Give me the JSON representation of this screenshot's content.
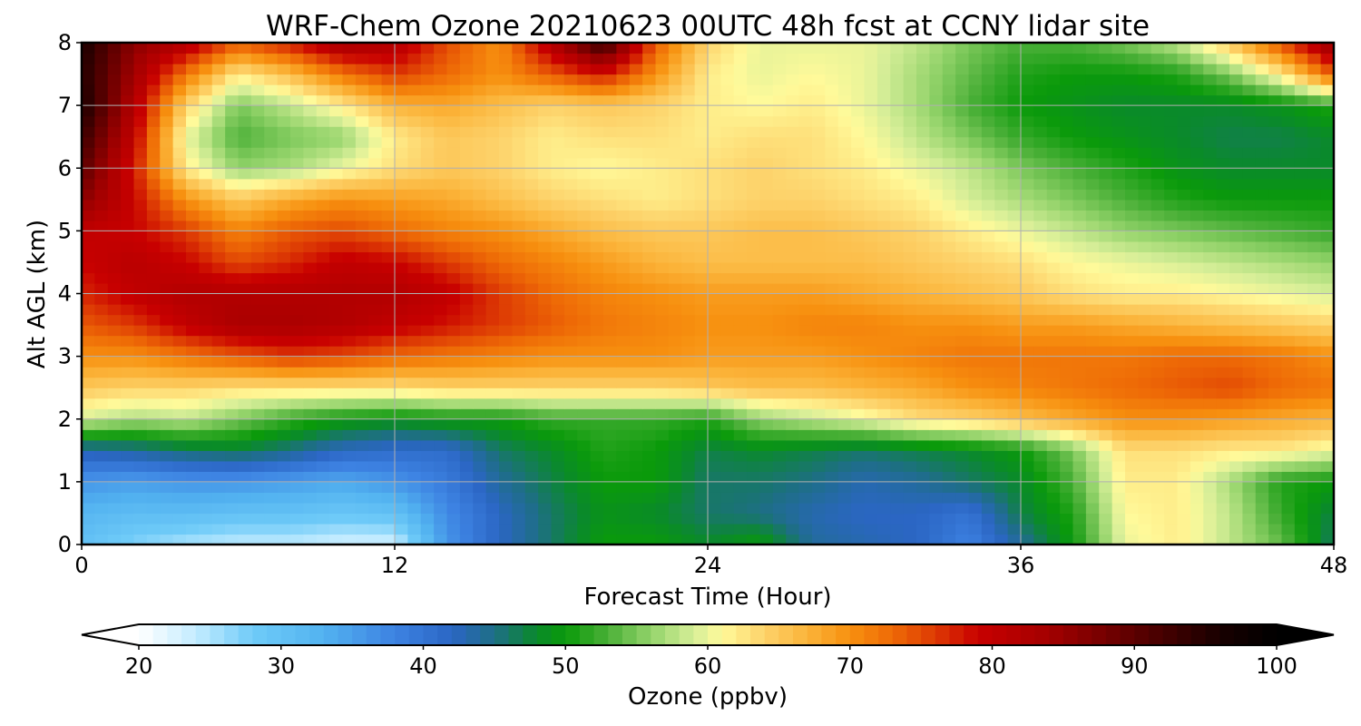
{
  "chart_data": {
    "type": "heatmap",
    "title": "WRF-Chem Ozone  20210623 00UTC 48h fcst at CCNY lidar site",
    "xlabel": "Forecast Time (Hour)",
    "ylabel": "Alt AGL (km)",
    "xlim": [
      0,
      48
    ],
    "ylim": [
      0,
      8
    ],
    "x_ticks": [
      "0",
      "12",
      "24",
      "36",
      "48"
    ],
    "y_ticks": [
      "0",
      "1",
      "2",
      "3",
      "4",
      "5",
      "6",
      "7",
      "8"
    ],
    "grid": true,
    "x": [
      0,
      2,
      4,
      6,
      8,
      10,
      12,
      14,
      16,
      18,
      20,
      22,
      24,
      26,
      28,
      30,
      32,
      34,
      36,
      38,
      40,
      42,
      44,
      46,
      48
    ],
    "y": [
      0.0,
      0.5,
      1.0,
      1.5,
      2.0,
      2.5,
      3.0,
      3.5,
      4.0,
      4.5,
      5.0,
      5.5,
      6.0,
      6.5,
      7.0,
      7.5,
      8.0
    ],
    "z": [
      [
        30,
        27,
        25,
        24,
        24,
        23,
        23,
        36,
        42,
        46,
        50,
        50,
        48,
        50,
        44,
        43,
        42,
        38,
        44,
        50,
        60,
        62,
        58,
        54,
        46
      ],
      [
        32,
        31,
        31,
        30,
        30,
        29,
        30,
        37,
        42,
        46,
        49,
        48,
        46,
        45,
        43,
        42,
        42,
        40,
        47,
        51,
        61,
        62,
        58,
        52,
        47
      ],
      [
        36,
        35,
        36,
        36,
        35,
        34,
        36,
        39,
        44,
        47,
        50,
        50,
        46,
        46,
        45,
        43,
        44,
        46,
        48,
        53,
        62,
        62,
        57,
        51,
        50
      ],
      [
        43,
        44,
        46,
        47,
        45,
        42,
        41,
        41,
        46,
        48,
        51,
        50,
        47,
        48,
        47,
        46,
        47,
        48,
        50,
        55,
        63,
        63,
        62,
        62,
        60
      ],
      [
        59,
        57,
        58,
        55,
        52,
        50,
        49,
        50,
        50,
        52,
        52,
        52,
        51,
        56,
        58,
        60,
        63,
        64,
        66,
        68,
        70,
        70,
        69,
        68,
        67
      ],
      [
        65,
        64,
        64,
        63,
        63,
        63,
        63,
        64,
        64,
        64,
        64,
        64,
        65,
        66,
        66,
        67,
        68,
        70,
        71,
        72,
        73,
        74,
        75,
        73,
        72
      ],
      [
        70,
        70,
        72,
        74,
        76,
        75,
        73,
        72,
        71,
        70,
        70,
        70,
        69,
        69,
        69,
        70,
        71,
        72,
        72,
        72,
        72,
        73,
        73,
        72,
        70
      ],
      [
        74,
        76,
        80,
        83,
        83,
        82,
        80,
        78,
        76,
        74,
        72,
        71,
        70,
        70,
        71,
        71,
        70,
        70,
        69,
        69,
        68,
        67,
        66,
        65,
        64
      ],
      [
        77,
        80,
        82,
        82,
        82,
        82,
        82,
        80,
        76,
        73,
        71,
        70,
        69,
        69,
        69,
        68,
        67,
        66,
        65,
        63,
        62,
        62,
        61,
        60,
        59
      ],
      [
        79,
        81,
        79,
        75,
        77,
        80,
        79,
        76,
        73,
        71,
        69,
        67,
        66,
        66,
        66,
        66,
        65,
        64,
        63,
        61,
        60,
        59,
        58,
        57,
        56
      ],
      [
        80,
        79,
        76,
        71,
        74,
        75,
        73,
        71,
        70,
        68,
        66,
        65,
        65,
        66,
        66,
        65,
        64,
        62,
        60,
        58,
        56,
        55,
        54,
        53,
        52
      ],
      [
        86,
        79,
        70,
        65,
        68,
        70,
        69,
        68,
        66,
        64,
        63,
        62,
        63,
        64,
        64,
        63,
        62,
        59,
        57,
        55,
        53,
        51,
        50,
        50,
        50
      ],
      [
        90,
        78,
        62,
        56,
        57,
        60,
        63,
        65,
        64,
        62,
        61,
        62,
        63,
        64,
        63,
        62,
        60,
        58,
        55,
        53,
        51,
        49,
        48,
        48,
        48
      ],
      [
        93,
        80,
        60,
        53,
        55,
        56,
        62,
        65,
        64,
        62,
        63,
        63,
        62,
        63,
        63,
        61,
        58,
        55,
        52,
        50,
        49,
        48,
        47,
        47,
        48
      ],
      [
        96,
        82,
        64,
        55,
        58,
        62,
        67,
        68,
        66,
        64,
        65,
        64,
        62,
        61,
        62,
        60,
        57,
        53,
        50,
        49,
        48,
        48,
        48,
        49,
        51
      ],
      [
        95,
        84,
        72,
        62,
        66,
        72,
        76,
        73,
        70,
        74,
        78,
        70,
        62,
        60,
        61,
        60,
        57,
        54,
        51,
        50,
        50,
        51,
        55,
        62,
        74
      ],
      [
        96,
        86,
        82,
        74,
        78,
        84,
        82,
        75,
        70,
        82,
        94,
        74,
        64,
        60,
        60,
        60,
        58,
        55,
        53,
        53,
        55,
        58,
        65,
        75,
        86
      ]
    ],
    "colorbar": {
      "label": "Ozone  (ppbv)",
      "min": 20,
      "max": 100,
      "ticks": [
        "20",
        "30",
        "40",
        "50",
        "60",
        "70",
        "80",
        "90",
        "100"
      ],
      "extend": "both"
    },
    "colormap": [
      [
        20,
        "#ffffff"
      ],
      [
        24,
        "#c4ecff"
      ],
      [
        28,
        "#6fcbf8"
      ],
      [
        33,
        "#52b2f0"
      ],
      [
        38,
        "#3d82e2"
      ],
      [
        42,
        "#2b66c4"
      ],
      [
        45,
        "#1e6e86"
      ],
      [
        48,
        "#0a8a2a"
      ],
      [
        50,
        "#0a9a0a"
      ],
      [
        53,
        "#4bb038"
      ],
      [
        56,
        "#93d36a"
      ],
      [
        59,
        "#d6ee98"
      ],
      [
        61,
        "#fffa9a"
      ],
      [
        64,
        "#fdd26a"
      ],
      [
        67,
        "#fbb43a"
      ],
      [
        70,
        "#f7900f"
      ],
      [
        73,
        "#ee6a06"
      ],
      [
        76,
        "#dd3a04"
      ],
      [
        79,
        "#c80000"
      ],
      [
        84,
        "#a30000"
      ],
      [
        90,
        "#5c0000"
      ],
      [
        96,
        "#180000"
      ],
      [
        100,
        "#000000"
      ]
    ]
  }
}
